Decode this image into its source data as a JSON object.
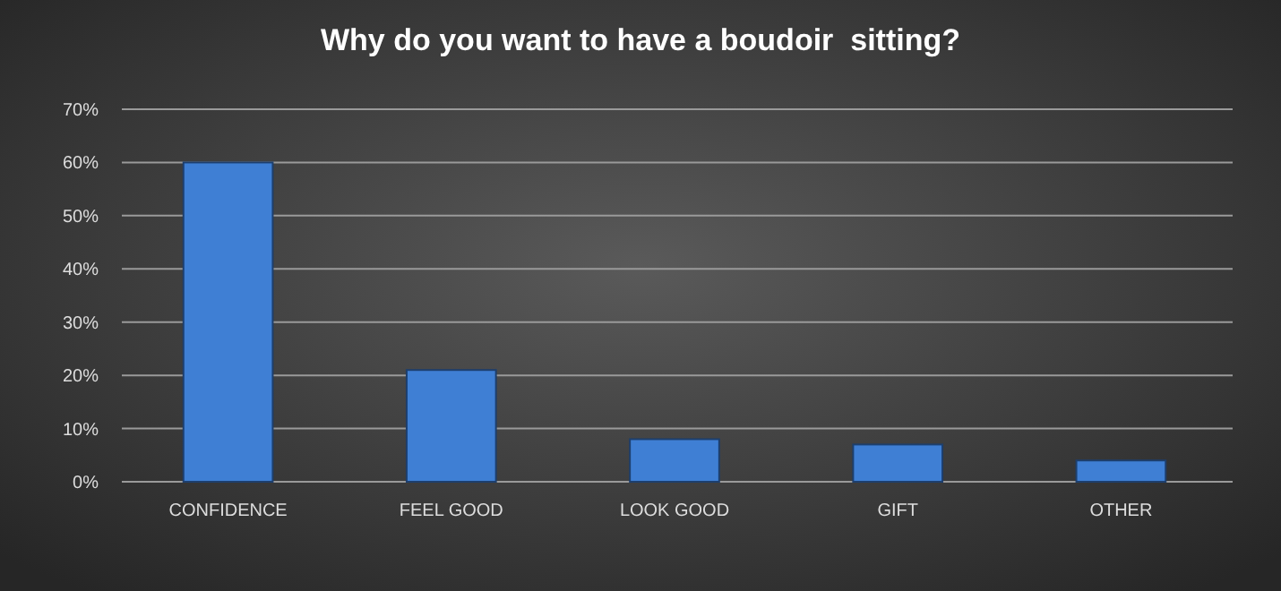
{
  "chart_data": {
    "type": "bar",
    "title": "Why do you want to have a boudoir  sitting?",
    "categories": [
      "CONFIDENCE",
      "FEEL GOOD",
      "LOOK GOOD",
      "GIFT",
      "OTHER"
    ],
    "values": [
      0.6,
      0.21,
      0.08,
      0.07,
      0.04
    ],
    "color": "#3f7fd4",
    "ylim": [
      0,
      0.7
    ],
    "yticks": [
      {
        "value": 0,
        "label": "0%"
      },
      {
        "value": 0.1,
        "label": "10%"
      },
      {
        "value": 0.2,
        "label": "20%"
      },
      {
        "value": 0.3,
        "label": "30%"
      },
      {
        "value": 0.4,
        "label": "40%"
      },
      {
        "value": 0.5,
        "label": "50%"
      },
      {
        "value": 0.6,
        "label": "60%"
      },
      {
        "value": 0.7,
        "label": "70%"
      }
    ],
    "grid": "y"
  }
}
